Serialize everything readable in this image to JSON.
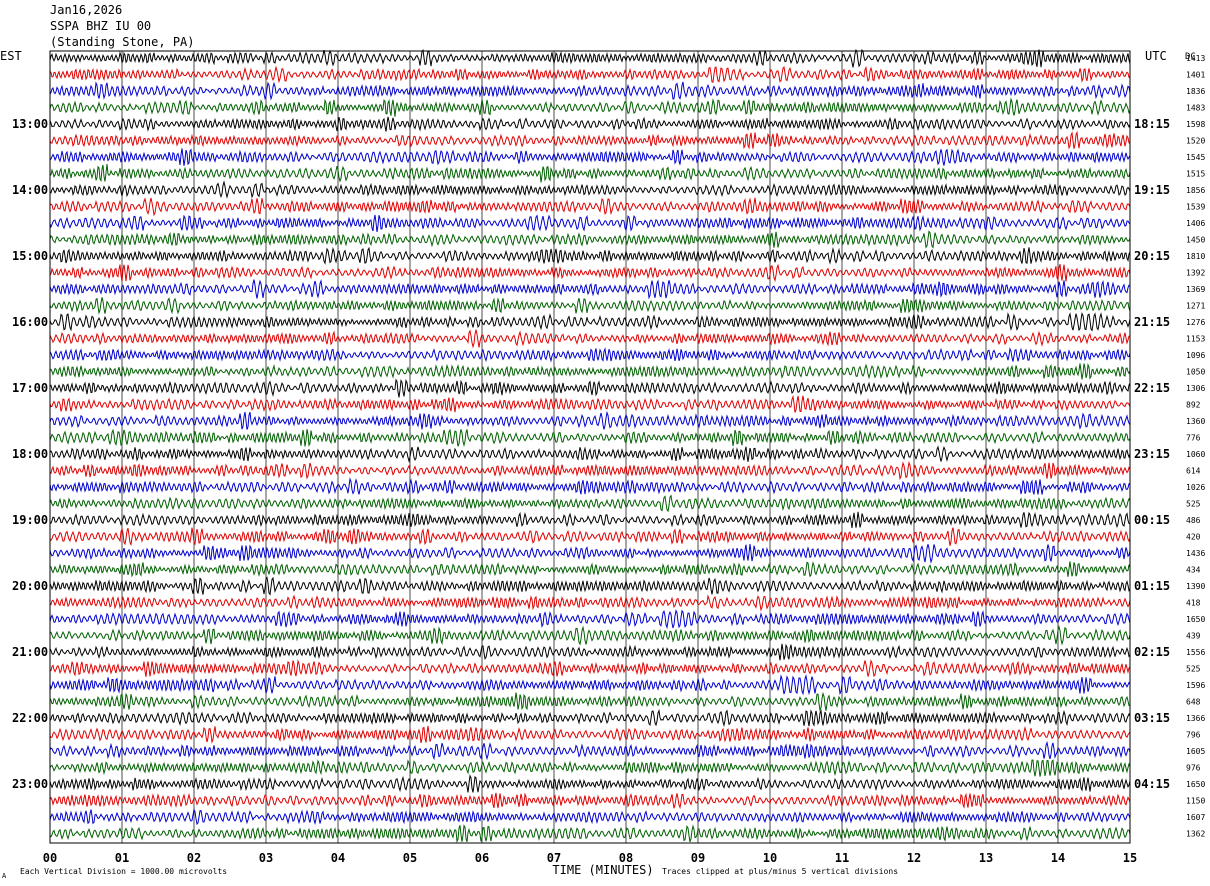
{
  "header": {
    "date": "Jan16,2026",
    "station": "SSPA BHZ IU 00",
    "location": "(Standing Stone, PA)"
  },
  "footer": {
    "scale_note": "Each Vertical Division = 1000.00 microvolts",
    "clip_note": "Traces clipped at plus/minus 5 vertical divisions",
    "corner_mark": "A"
  },
  "chart_data": {
    "type": "line",
    "subtype": "helicorder",
    "xlabel": "TIME (MINUTES)",
    "xlim": [
      0,
      15
    ],
    "x_ticks": [
      "00",
      "01",
      "02",
      "03",
      "04",
      "05",
      "06",
      "07",
      "08",
      "09",
      "10",
      "11",
      "12",
      "13",
      "14",
      "15"
    ],
    "left_axis_title": "EST",
    "right_axis_title": "UTC",
    "dc_header": "DC",
    "left_hour_labels": [
      "13:00",
      "14:00",
      "15:00",
      "16:00",
      "17:00",
      "18:00",
      "19:00",
      "20:00",
      "21:00",
      "22:00",
      "23:00"
    ],
    "right_hour_labels": [
      "18:15",
      "19:15",
      "20:15",
      "21:15",
      "22:15",
      "23:15",
      "00:15",
      "01:15",
      "02:15",
      "03:15",
      "04:15"
    ],
    "trace_colors": [
      "#000000",
      "#e00000",
      "#0000d0",
      "#006000"
    ],
    "dc_offsets": [
      1413,
      1401,
      1836,
      1483,
      1598,
      1520,
      1545,
      1515,
      1856,
      1539,
      1406,
      1450,
      1810,
      1392,
      1369,
      1271,
      1276,
      1153,
      1096,
      1050,
      1306,
      892,
      1360,
      776,
      1060,
      614,
      1026,
      525,
      486,
      420,
      1436,
      434,
      1390,
      418,
      1650,
      439,
      1556,
      525,
      1596,
      648,
      1366,
      796,
      1605,
      976,
      1650,
      1150,
      1607,
      1362
    ],
    "grid": true,
    "vertical_gridlines_every_minutes": 1
  }
}
